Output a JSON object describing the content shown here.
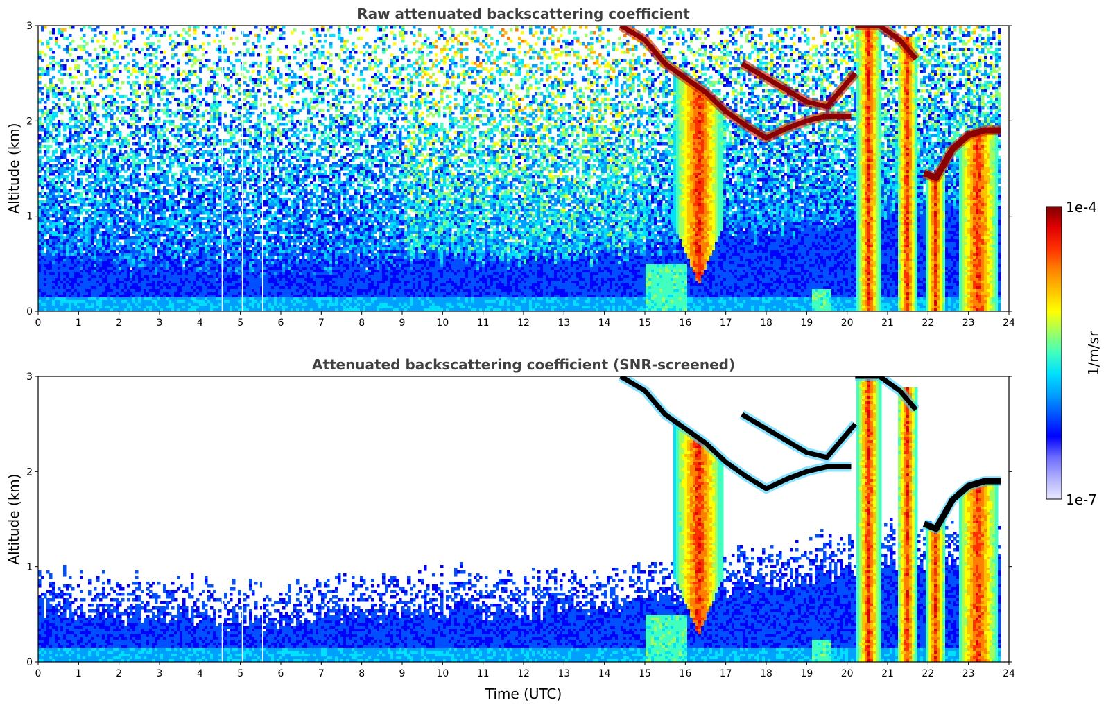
{
  "chart_data": [
    {
      "type": "heatmap",
      "title": "Raw attenuated backscattering coefficient",
      "xlabel": "",
      "ylabel": "Altitude (km)",
      "xlim": [
        0,
        24
      ],
      "ylim": [
        0,
        3
      ],
      "x_ticks": [
        "0",
        "1",
        "2",
        "3",
        "4",
        "5",
        "6",
        "7",
        "8",
        "9",
        "10",
        "11",
        "12",
        "13",
        "14",
        "15",
        "16",
        "17",
        "18",
        "19",
        "20",
        "21",
        "22",
        "23",
        "24"
      ],
      "y_ticks": [
        "0",
        "1",
        "2",
        "3"
      ],
      "screened": false,
      "features": {
        "boundary_layer_top_km": [
          [
            0,
            0.6
          ],
          [
            1,
            0.55
          ],
          [
            2,
            0.5
          ],
          [
            3,
            0.5
          ],
          [
            4,
            0.45
          ],
          [
            5,
            0.45
          ],
          [
            6,
            0.45
          ],
          [
            7,
            0.5
          ],
          [
            8,
            0.5
          ],
          [
            9,
            0.55
          ],
          [
            10,
            0.6
          ],
          [
            11,
            0.55
          ],
          [
            12,
            0.55
          ],
          [
            13,
            0.6
          ],
          [
            14,
            0.6
          ],
          [
            15,
            0.65
          ],
          [
            16,
            0.75
          ],
          [
            17,
            0.8
          ],
          [
            18,
            0.85
          ],
          [
            19,
            0.9
          ],
          [
            20,
            1.0
          ],
          [
            21,
            1.1
          ],
          [
            22,
            1.1
          ],
          [
            23,
            1.1
          ],
          [
            23.8,
            1.1
          ]
        ],
        "cloud_layer_1": [
          [
            14.4,
            3.0
          ],
          [
            15.0,
            2.85
          ],
          [
            15.5,
            2.6
          ],
          [
            16.0,
            2.45
          ],
          [
            16.5,
            2.3
          ],
          [
            17.0,
            2.1
          ],
          [
            17.5,
            1.95
          ],
          [
            18.0,
            1.82
          ],
          [
            18.5,
            1.92
          ],
          [
            19.0,
            2.0
          ],
          [
            19.5,
            2.05
          ],
          [
            20.1,
            2.05
          ]
        ],
        "cloud_layer_2": [
          [
            17.4,
            2.6
          ],
          [
            17.8,
            2.5
          ],
          [
            18.2,
            2.4
          ],
          [
            18.6,
            2.3
          ],
          [
            19.0,
            2.2
          ],
          [
            19.5,
            2.15
          ],
          [
            20.0,
            2.4
          ],
          [
            20.2,
            2.5
          ]
        ],
        "cloud_layer_3": [
          [
            20.2,
            3.0
          ],
          [
            20.8,
            3.0
          ],
          [
            21.3,
            2.85
          ],
          [
            21.7,
            2.65
          ]
        ],
        "cloud_layer_4": [
          [
            21.9,
            1.45
          ],
          [
            22.2,
            1.4
          ],
          [
            22.6,
            1.7
          ],
          [
            23.0,
            1.85
          ],
          [
            23.4,
            1.9
          ],
          [
            23.8,
            1.9
          ]
        ],
        "precipitation_shafts": [
          [
            15.7,
            16.9
          ],
          [
            20.2,
            20.8
          ],
          [
            21.2,
            21.7
          ],
          [
            21.9,
            22.4
          ],
          [
            22.7,
            23.7
          ]
        ]
      }
    },
    {
      "type": "heatmap",
      "title": "Attenuated backscattering coefficient (SNR-screened)",
      "xlabel": "Time (UTC)",
      "ylabel": "Altitude (km)",
      "xlim": [
        0,
        24
      ],
      "ylim": [
        0,
        3
      ],
      "x_ticks": [
        "0",
        "1",
        "2",
        "3",
        "4",
        "5",
        "6",
        "7",
        "8",
        "9",
        "10",
        "11",
        "12",
        "13",
        "14",
        "15",
        "16",
        "17",
        "18",
        "19",
        "20",
        "21",
        "22",
        "23",
        "24"
      ],
      "y_ticks": [
        "0",
        "1",
        "2",
        "3"
      ],
      "screened": true
    }
  ],
  "colorbar": {
    "max_label": "1e-4",
    "min_label": "1e-7",
    "unit_label": "1/m/sr",
    "colors": [
      "#e8e8ff",
      "#b0b0ff",
      "#6c6cff",
      "#0000ff",
      "#0050ff",
      "#00a0ff",
      "#00e0ff",
      "#40ffbf",
      "#a0ff60",
      "#ffff00",
      "#ffc000",
      "#ff8000",
      "#ff3000",
      "#e00000",
      "#800000"
    ]
  }
}
